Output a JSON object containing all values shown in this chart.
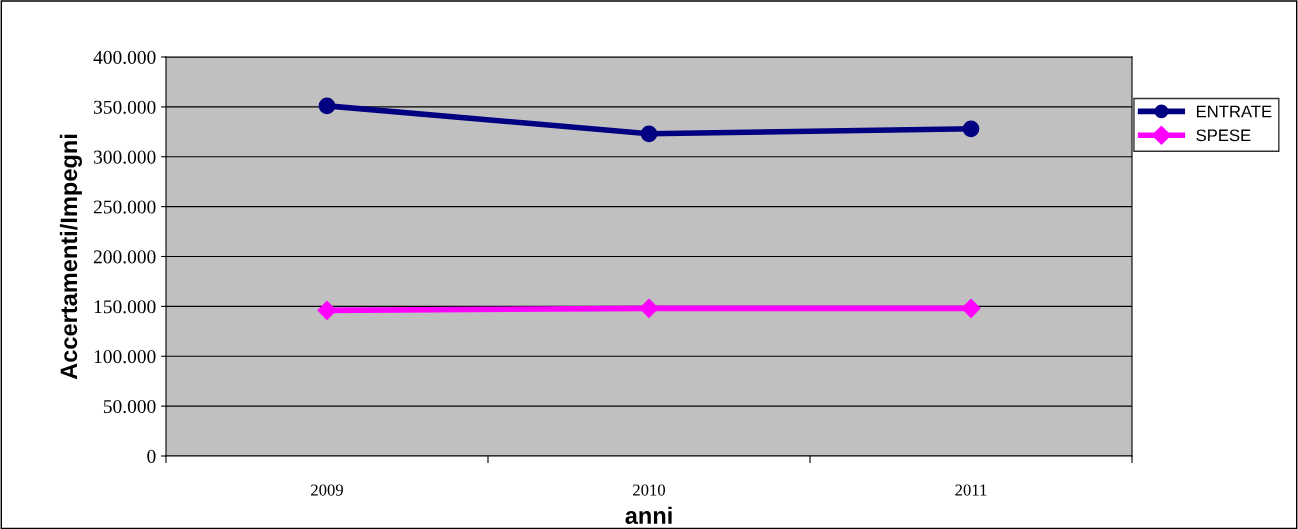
{
  "chart_data": {
    "type": "line",
    "xlabel": "anni",
    "ylabel": "Accertamenti/Impegni",
    "categories": [
      "2009",
      "2010",
      "2011"
    ],
    "series": [
      {
        "name": "ENTRATE",
        "color": "#000080",
        "marker": "circle",
        "values": [
          351000,
          323000,
          328000
        ]
      },
      {
        "name": "SPESE",
        "color": "#ff00ff",
        "marker": "diamond",
        "values": [
          146000,
          148000,
          148000
        ]
      }
    ],
    "ylim": [
      0,
      400000
    ],
    "yticks": [
      {
        "value": 0,
        "label": "0"
      },
      {
        "value": 50000,
        "label": "50.000"
      },
      {
        "value": 100000,
        "label": "100.000"
      },
      {
        "value": 150000,
        "label": "150.000"
      },
      {
        "value": 200000,
        "label": "200.000"
      },
      {
        "value": 250000,
        "label": "250.000"
      },
      {
        "value": 300000,
        "label": "300.000"
      },
      {
        "value": 350000,
        "label": "350.000"
      },
      {
        "value": 400000,
        "label": "400.000"
      }
    ],
    "grid": "y",
    "legend": "right"
  }
}
